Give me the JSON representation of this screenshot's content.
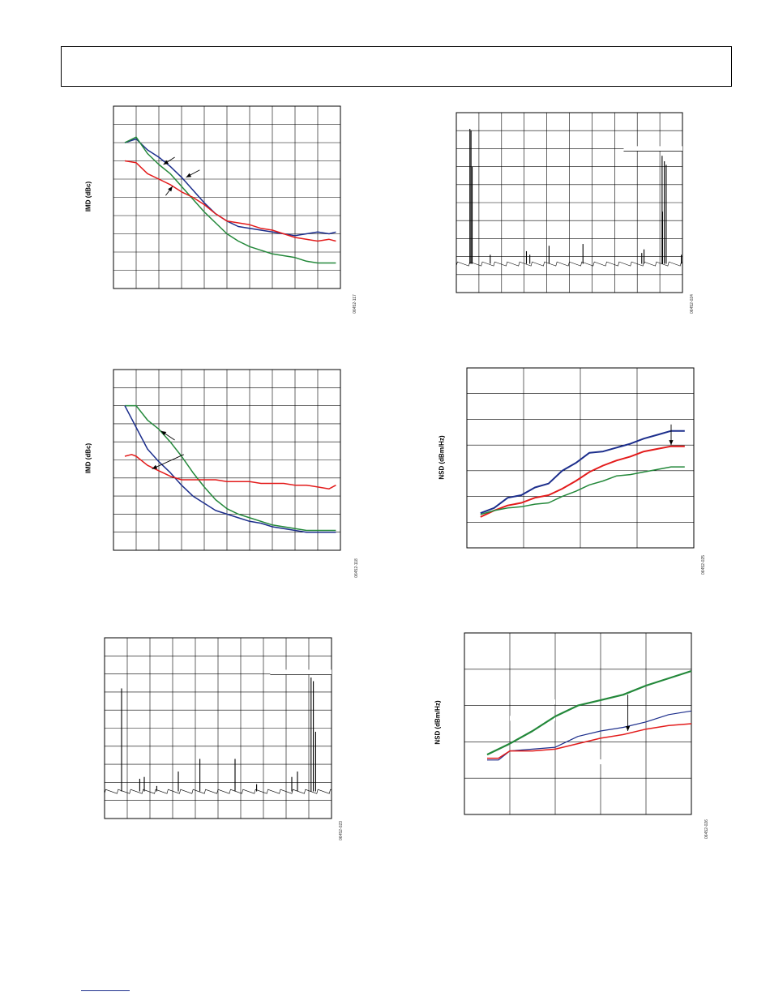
{
  "page": {
    "colors": {
      "blue": "#1c2e8c",
      "green": "#23883a",
      "red": "#e31b1b",
      "black": "#000000",
      "grid": "#000000"
    }
  },
  "figures": [
    {
      "id": "imd-1",
      "ylabel": "IMD (dBc)",
      "figure_id": "06452-117"
    },
    {
      "id": "fft-right-1",
      "figure_id": "06452-024"
    },
    {
      "id": "imd-2",
      "ylabel": "IMD (dBc)",
      "figure_id": "06452-118"
    },
    {
      "id": "nsd-1",
      "ylabel": "NSD (dBm/Hz)",
      "figure_id": "06452-025"
    },
    {
      "id": "fft-left",
      "figure_id": "06452-023"
    },
    {
      "id": "nsd-2",
      "ylabel": "NSD (dBm/Hz)",
      "figure_id": "06452-026"
    }
  ],
  "chart_data": [
    {
      "type": "line",
      "id": "imd-1",
      "xlim": [
        0,
        10
      ],
      "ylim": [
        0,
        10
      ],
      "grid": true,
      "xdiv": 10,
      "ydiv": 10,
      "series": [
        {
          "color": "blue",
          "x": [
            0.5,
            1.0,
            1.5,
            2.0,
            2.5,
            3.0,
            3.5,
            4.0,
            4.5,
            5.0,
            5.5,
            6.0,
            6.5,
            7.0,
            7.5,
            8.0,
            8.5,
            9.0,
            9.5,
            9.8
          ],
          "y": [
            8.0,
            8.2,
            7.6,
            7.2,
            6.7,
            6.1,
            5.4,
            4.7,
            4.1,
            3.7,
            3.4,
            3.3,
            3.2,
            3.1,
            3.0,
            2.9,
            3.0,
            3.1,
            3.0,
            3.1
          ]
        },
        {
          "color": "green",
          "x": [
            0.5,
            1.0,
            1.5,
            2.0,
            2.5,
            3.0,
            3.5,
            4.0,
            4.5,
            5.0,
            5.5,
            6.0,
            6.5,
            7.0,
            7.5,
            8.0,
            8.5,
            9.0,
            9.5,
            9.8
          ],
          "y": [
            8.0,
            8.3,
            7.4,
            6.8,
            6.3,
            5.6,
            4.9,
            4.2,
            3.6,
            3.0,
            2.6,
            2.3,
            2.1,
            1.9,
            1.8,
            1.7,
            1.5,
            1.4,
            1.4,
            1.4
          ]
        },
        {
          "color": "red",
          "x": [
            0.5,
            1.0,
            1.5,
            2.0,
            2.5,
            3.0,
            3.5,
            4.0,
            4.5,
            5.0,
            5.5,
            6.0,
            6.5,
            7.0,
            7.5,
            8.0,
            8.5,
            9.0,
            9.5,
            9.8
          ],
          "y": [
            7.0,
            6.9,
            6.3,
            6.0,
            5.7,
            5.3,
            5.0,
            4.6,
            4.1,
            3.7,
            3.6,
            3.5,
            3.3,
            3.2,
            3.0,
            2.8,
            2.7,
            2.6,
            2.7,
            2.6
          ]
        }
      ],
      "arrows": [
        {
          "from": [
            2.7,
            7.2
          ],
          "to": [
            2.2,
            6.8
          ]
        },
        {
          "from": [
            3.8,
            6.5
          ],
          "to": [
            3.2,
            6.1
          ]
        },
        {
          "from": [
            2.3,
            5.1
          ],
          "to": [
            2.6,
            5.6
          ]
        }
      ]
    },
    {
      "type": "bar",
      "id": "fft-right-1",
      "xlim": [
        0,
        10
      ],
      "ylim": [
        0,
        10
      ],
      "grid": true,
      "xdiv": 10,
      "ydiv": 10,
      "noise_floor": 1.6,
      "spikes": [
        {
          "x": 0.6,
          "y": 9.1
        },
        {
          "x": 0.65,
          "y": 9.0
        },
        {
          "x": 0.7,
          "y": 7.0
        },
        {
          "x": 1.5,
          "y": 2.1
        },
        {
          "x": 3.1,
          "y": 2.3
        },
        {
          "x": 3.25,
          "y": 2.1
        },
        {
          "x": 4.1,
          "y": 2.6
        },
        {
          "x": 5.6,
          "y": 2.7
        },
        {
          "x": 8.2,
          "y": 2.2
        },
        {
          "x": 8.3,
          "y": 2.4
        },
        {
          "x": 9.1,
          "y": 7.6
        },
        {
          "x": 9.2,
          "y": 7.3
        },
        {
          "x": 9.28,
          "y": 7.1
        },
        {
          "x": 9.12,
          "y": 4.5
        },
        {
          "x": 9.95,
          "y": 2.1
        }
      ],
      "annotation_line": {
        "x1": 7.4,
        "x2": 10.0,
        "y": 8.0
      }
    },
    {
      "type": "line",
      "id": "imd-2",
      "xlim": [
        0,
        10
      ],
      "ylim": [
        0,
        10
      ],
      "grid": true,
      "xdiv": 10,
      "ydiv": 10,
      "series": [
        {
          "color": "green",
          "x": [
            0.5,
            1.0,
            1.5,
            2.0,
            2.5,
            3.0,
            3.5,
            4.0,
            4.5,
            5.0,
            5.5,
            6.0,
            6.5,
            7.0,
            7.5,
            8.0,
            8.5,
            9.0,
            9.5,
            9.8
          ],
          "y": [
            8.0,
            8.0,
            7.2,
            6.7,
            6.0,
            5.2,
            4.3,
            3.5,
            2.8,
            2.3,
            2.0,
            1.8,
            1.6,
            1.4,
            1.3,
            1.2,
            1.1,
            1.1,
            1.1,
            1.1
          ]
        },
        {
          "color": "blue",
          "x": [
            0.5,
            1.0,
            1.5,
            2.0,
            2.5,
            3.0,
            3.5,
            4.0,
            4.5,
            5.0,
            5.5,
            6.0,
            6.5,
            7.0,
            7.5,
            8.0,
            8.5,
            9.0,
            9.5,
            9.8
          ],
          "y": [
            8.0,
            6.8,
            5.6,
            4.9,
            4.3,
            3.6,
            3.0,
            2.6,
            2.2,
            2.0,
            1.8,
            1.6,
            1.5,
            1.3,
            1.2,
            1.1,
            1.0,
            1.0,
            1.0,
            1.0
          ]
        },
        {
          "color": "red",
          "x": [
            0.5,
            0.8,
            1.0,
            1.5,
            2.0,
            2.5,
            3.0,
            3.5,
            4.0,
            4.5,
            5.0,
            5.5,
            6.0,
            6.5,
            7.0,
            7.5,
            8.0,
            8.5,
            9.0,
            9.5,
            9.8
          ],
          "y": [
            5.2,
            5.3,
            5.2,
            4.7,
            4.4,
            4.1,
            3.9,
            3.9,
            3.9,
            3.9,
            3.8,
            3.8,
            3.8,
            3.7,
            3.7,
            3.7,
            3.6,
            3.6,
            3.5,
            3.4,
            3.6
          ]
        }
      ],
      "arrows": [
        {
          "from": [
            2.7,
            6.1
          ],
          "to": [
            2.1,
            6.6
          ]
        },
        {
          "from": [
            3.1,
            5.3
          ],
          "to": [
            1.7,
            4.5
          ]
        }
      ]
    },
    {
      "type": "line",
      "id": "nsd-1",
      "xlim": [
        0,
        10
      ],
      "ylim": [
        0,
        7
      ],
      "grid": true,
      "xticks": [
        0,
        2.5,
        5.0,
        7.5,
        10.0
      ],
      "ydiv": 7,
      "series": [
        {
          "color": "blue",
          "width": 2,
          "x": [
            0.6,
            1.2,
            1.8,
            2.4,
            3.0,
            3.6,
            4.2,
            4.8,
            5.4,
            6.0,
            6.6,
            7.2,
            7.8,
            8.4,
            9.0,
            9.6
          ],
          "y": [
            1.35,
            1.55,
            1.95,
            2.05,
            2.35,
            2.5,
            3.0,
            3.3,
            3.7,
            3.75,
            3.9,
            4.05,
            4.25,
            4.4,
            4.55,
            4.55
          ]
        },
        {
          "color": "red",
          "width": 2,
          "x": [
            0.6,
            1.2,
            1.8,
            2.4,
            3.0,
            3.6,
            4.2,
            4.8,
            5.4,
            6.0,
            6.6,
            7.2,
            7.8,
            8.4,
            9.0,
            9.6
          ],
          "y": [
            1.2,
            1.45,
            1.65,
            1.75,
            1.95,
            2.05,
            2.3,
            2.6,
            2.95,
            3.2,
            3.4,
            3.55,
            3.75,
            3.85,
            3.95,
            3.95
          ]
        },
        {
          "color": "green",
          "width": 1.5,
          "x": [
            0.6,
            1.2,
            1.8,
            2.4,
            3.0,
            3.6,
            4.2,
            4.8,
            5.4,
            6.0,
            6.6,
            7.2,
            7.8,
            8.4,
            9.0,
            9.6
          ],
          "y": [
            1.3,
            1.45,
            1.55,
            1.6,
            1.7,
            1.75,
            2.0,
            2.2,
            2.45,
            2.6,
            2.8,
            2.85,
            2.95,
            3.05,
            3.15,
            3.15
          ]
        }
      ],
      "arrows": [
        {
          "from": [
            9.0,
            4.8
          ],
          "to": [
            9.0,
            4.0
          ]
        }
      ],
      "labels_mask": [
        {
          "x1": 5.1,
          "x2": 7.3,
          "y": 2.9
        },
        {
          "x1": 5.2,
          "x2": 7.1,
          "y": 2.6
        }
      ]
    },
    {
      "type": "bar",
      "id": "fft-left",
      "xlim": [
        0,
        10
      ],
      "ylim": [
        0,
        10
      ],
      "grid": true,
      "xdiv": 10,
      "ydiv": 10,
      "noise_floor": 1.5,
      "spikes": [
        {
          "x": 0.75,
          "y": 7.2
        },
        {
          "x": 1.55,
          "y": 2.2
        },
        {
          "x": 1.75,
          "y": 2.3
        },
        {
          "x": 2.3,
          "y": 1.8
        },
        {
          "x": 3.25,
          "y": 2.6
        },
        {
          "x": 4.2,
          "y": 3.3
        },
        {
          "x": 5.75,
          "y": 3.3
        },
        {
          "x": 6.7,
          "y": 1.9
        },
        {
          "x": 8.25,
          "y": 2.3
        },
        {
          "x": 8.5,
          "y": 2.6
        },
        {
          "x": 9.1,
          "y": 7.8
        },
        {
          "x": 9.2,
          "y": 7.6
        },
        {
          "x": 9.3,
          "y": 4.8
        }
      ],
      "annotation_line": {
        "x1": 7.3,
        "x2": 10.0,
        "y": 8.1
      }
    },
    {
      "type": "line",
      "id": "nsd-2",
      "xlim": [
        0,
        10
      ],
      "ylim": [
        0,
        5
      ],
      "grid": true,
      "xdiv": 5,
      "ydiv": 5,
      "series": [
        {
          "color": "green",
          "width": 2.2,
          "x": [
            1.0,
            2.0,
            3.0,
            4.0,
            5.0,
            6.0,
            7.0,
            8.0,
            9.0,
            10.0
          ],
          "y": [
            1.65,
            1.95,
            2.3,
            2.7,
            3.0,
            3.15,
            3.3,
            3.55,
            3.75,
            3.95
          ]
        },
        {
          "color": "blue",
          "width": 1.2,
          "x": [
            1.0,
            1.5,
            2.0,
            3.0,
            4.0,
            5.0,
            6.0,
            7.0,
            8.0,
            9.0,
            10.0
          ],
          "y": [
            1.5,
            1.5,
            1.75,
            1.8,
            1.85,
            2.15,
            2.3,
            2.4,
            2.55,
            2.75,
            2.85
          ]
        },
        {
          "color": "red",
          "width": 1.5,
          "x": [
            1.0,
            1.5,
            2.0,
            3.0,
            4.0,
            5.0,
            6.0,
            7.0,
            8.0,
            9.0,
            10.0
          ],
          "y": [
            1.55,
            1.55,
            1.75,
            1.75,
            1.8,
            1.95,
            2.1,
            2.2,
            2.35,
            2.45,
            2.5
          ]
        }
      ],
      "arrows": [
        {
          "from": [
            7.2,
            3.3
          ],
          "to": [
            7.2,
            2.3
          ]
        }
      ],
      "labels_mask": [
        {
          "x1": 2.2,
          "x2": 4.0,
          "y": 3.1
        },
        {
          "x1": 5.2,
          "x2": 7.0,
          "y": 1.45
        },
        {
          "x1": 2.0,
          "x2": 4.0,
          "y": 2.65
        }
      ]
    }
  ]
}
